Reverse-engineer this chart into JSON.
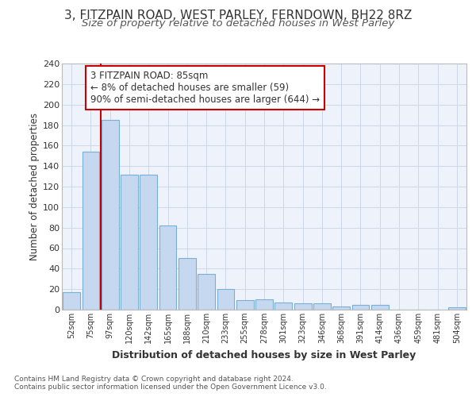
{
  "title1": "3, FITZPAIN ROAD, WEST PARLEY, FERNDOWN, BH22 8RZ",
  "title2": "Size of property relative to detached houses in West Parley",
  "xlabel": "Distribution of detached houses by size in West Parley",
  "ylabel": "Number of detached properties",
  "bin_labels": [
    "52sqm",
    "75sqm",
    "97sqm",
    "120sqm",
    "142sqm",
    "165sqm",
    "188sqm",
    "210sqm",
    "233sqm",
    "255sqm",
    "278sqm",
    "301sqm",
    "323sqm",
    "346sqm",
    "368sqm",
    "391sqm",
    "414sqm",
    "436sqm",
    "459sqm",
    "481sqm",
    "504sqm"
  ],
  "bar_values": [
    17,
    154,
    185,
    132,
    132,
    82,
    50,
    35,
    20,
    9,
    10,
    7,
    6,
    6,
    3,
    5,
    5,
    0,
    0,
    0,
    2
  ],
  "bar_color": "#c5d8f0",
  "bar_edge_color": "#7aafd4",
  "red_line_x": 1.5,
  "annotation_text": "3 FITZPAIN ROAD: 85sqm\n← 8% of detached houses are smaller (59)\n90% of semi-detached houses are larger (644) →",
  "annotation_box_edge": "#cc0000",
  "red_line_color": "#cc0000",
  "ylim": [
    0,
    240
  ],
  "yticks": [
    0,
    20,
    40,
    60,
    80,
    100,
    120,
    140,
    160,
    180,
    200,
    220,
    240
  ],
  "footer1": "Contains HM Land Registry data © Crown copyright and database right 2024.",
  "footer2": "Contains public sector information licensed under the Open Government Licence v3.0.",
  "grid_color": "#cdd8e8",
  "axes_bg": "#eef2fa",
  "fig_bg": "#ffffff"
}
